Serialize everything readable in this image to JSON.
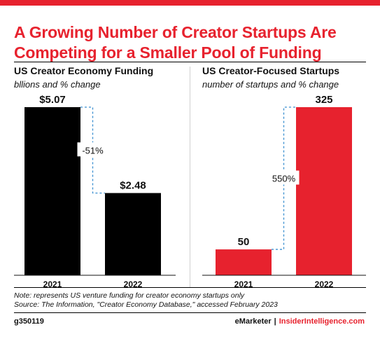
{
  "title": "A Growing Number of Creator Startups Are Competing for a Smaller Pool of Funding",
  "colors": {
    "accent": "#e7222e",
    "dark_bar": "#000000",
    "red_bar": "#e7222e",
    "connector": "#3a8fd0"
  },
  "chart_data": [
    {
      "type": "bar",
      "title": "US Creator Economy Funding",
      "subtitle": "bllions and % change",
      "categories": [
        "2021",
        "2022"
      ],
      "values": [
        5.07,
        2.48
      ],
      "value_labels": [
        "$5.07",
        "$2.48"
      ],
      "change_label": "-51%",
      "bar_color": "#000000"
    },
    {
      "type": "bar",
      "title": "US Creator-Focused Startups",
      "subtitle": "number of startups and % change",
      "categories": [
        "2021",
        "2022"
      ],
      "values": [
        50,
        325
      ],
      "value_labels": [
        "50",
        "325"
      ],
      "change_label": "550%",
      "bar_color": "#e7222e"
    }
  ],
  "note": "Note: represents US venture funding for creator economy startups only",
  "source": "Source: The Information, \"Creator Economy Database,\" accessed February 2023",
  "footer": {
    "id": "g350119",
    "brand_emarketer": "eMarketer",
    "brand_separator": "|",
    "brand_insider": "InsiderIntelligence.com"
  }
}
